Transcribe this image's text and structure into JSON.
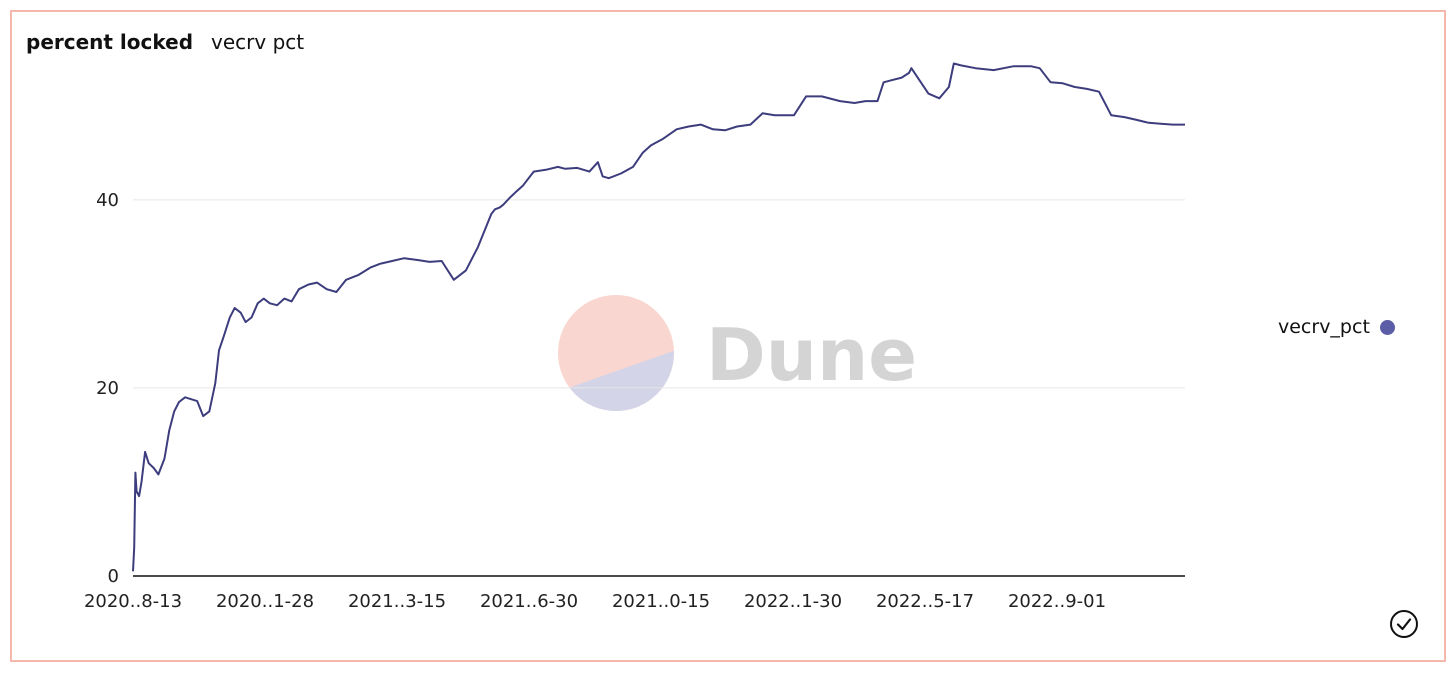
{
  "card": {
    "title": "percent locked",
    "subtitle": "vecrv pct"
  },
  "watermark": {
    "text": "Dune",
    "color_top": "#f9d6cf",
    "color_bottom": "#d4d4e8",
    "text_color": "#d4d4d4"
  },
  "legend": {
    "label": "vecrv_pct",
    "color": "#5b5ea6"
  },
  "icons": {
    "confirm": "check-circle-icon"
  },
  "colors": {
    "border": "#f4b8ac",
    "line": "#3d3d7e",
    "grid": "#e6e6e6"
  },
  "chart_data": {
    "type": "line",
    "title": "",
    "xlabel": "",
    "ylabel": "",
    "x_tick_labels": [
      "2020..8-13",
      "2020..1-28",
      "2021..3-15",
      "2021..6-30",
      "2021..0-15",
      "2022..1-30",
      "2022..5-17",
      "2022..9-01"
    ],
    "y_tick_labels": [
      "0",
      "20",
      "40"
    ],
    "y_ticks": [
      0,
      20,
      40
    ],
    "ylim": [
      0,
      57
    ],
    "xlim": [
      "2020-08-13",
      "2022-12-30"
    ],
    "grid": true,
    "legend_position": "right",
    "series": [
      {
        "name": "vecrv_pct",
        "x": [
          "2020-08-13",
          "2020-08-14",
          "2020-08-15",
          "2020-08-16",
          "2020-08-18",
          "2020-08-20",
          "2020-08-23",
          "2020-08-26",
          "2020-08-30",
          "2020-09-03",
          "2020-09-08",
          "2020-09-12",
          "2020-09-16",
          "2020-09-20",
          "2020-09-25",
          "2020-09-30",
          "2020-10-05",
          "2020-10-10",
          "2020-10-15",
          "2020-10-20",
          "2020-10-23",
          "2020-10-27",
          "2020-11-01",
          "2020-11-05",
          "2020-11-10",
          "2020-11-14",
          "2020-11-19",
          "2020-11-24",
          "2020-11-29",
          "2020-12-04",
          "2020-12-10",
          "2020-12-16",
          "2020-12-22",
          "2020-12-28",
          "2021-01-05",
          "2021-01-12",
          "2021-01-20",
          "2021-01-28",
          "2021-02-05",
          "2021-02-15",
          "2021-02-25",
          "2021-03-05",
          "2021-03-15",
          "2021-03-25",
          "2021-04-05",
          "2021-04-15",
          "2021-04-25",
          "2021-05-05",
          "2021-05-15",
          "2021-05-25",
          "2021-06-05",
          "2021-06-08",
          "2021-06-12",
          "2021-06-15",
          "2021-06-20",
          "2021-06-25",
          "2021-07-01",
          "2021-07-10",
          "2021-07-20",
          "2021-07-30",
          "2021-08-05",
          "2021-08-15",
          "2021-08-25",
          "2021-09-01",
          "2021-09-05",
          "2021-09-10",
          "2021-09-20",
          "2021-09-30",
          "2021-10-08",
          "2021-10-15",
          "2021-10-25",
          "2021-11-05",
          "2021-11-15",
          "2021-11-25",
          "2021-12-05",
          "2021-12-15",
          "2021-12-25",
          "2022-01-05",
          "2022-01-15",
          "2022-01-25",
          "2022-02-05",
          "2022-02-10",
          "2022-02-20",
          "2022-03-05",
          "2022-03-20",
          "2022-04-01",
          "2022-04-10",
          "2022-04-20",
          "2022-04-25",
          "2022-05-10",
          "2022-05-16",
          "2022-05-18",
          "2022-06-01",
          "2022-06-10",
          "2022-06-18",
          "2022-06-22",
          "2022-06-28",
          "2022-07-10",
          "2022-07-25",
          "2022-08-10",
          "2022-08-25",
          "2022-09-01",
          "2022-09-10",
          "2022-09-20",
          "2022-09-30",
          "2022-10-10",
          "2022-10-20",
          "2022-10-30",
          "2022-11-10",
          "2022-11-20",
          "2022-11-30",
          "2022-12-10",
          "2022-12-20",
          "2022-12-30"
        ],
        "values": [
          0.5,
          3.0,
          11.0,
          9.0,
          8.5,
          10.0,
          13.2,
          12.0,
          11.5,
          10.8,
          12.5,
          15.5,
          17.5,
          18.5,
          19.0,
          18.8,
          18.6,
          17.0,
          17.5,
          20.5,
          24.0,
          25.5,
          27.5,
          28.5,
          28.0,
          27.0,
          27.5,
          29.0,
          29.5,
          29.0,
          28.8,
          29.5,
          29.2,
          30.5,
          31.0,
          31.2,
          30.5,
          30.2,
          31.5,
          32.0,
          32.8,
          33.2,
          33.5,
          33.8,
          33.6,
          33.4,
          33.5,
          31.5,
          32.5,
          35.0,
          38.5,
          39.0,
          39.2,
          39.5,
          40.2,
          40.8,
          41.5,
          43.0,
          43.2,
          43.5,
          43.3,
          43.4,
          43.0,
          44.0,
          42.5,
          42.3,
          42.8,
          43.5,
          45.0,
          45.8,
          46.5,
          47.5,
          47.8,
          48.0,
          47.5,
          47.4,
          47.8,
          48.0,
          49.2,
          49.0,
          49.0,
          49.0,
          51.0,
          51.0,
          50.5,
          50.3,
          50.5,
          50.5,
          52.5,
          53.0,
          53.5,
          54.0,
          51.3,
          50.8,
          52.0,
          54.5,
          54.3,
          54.0,
          53.8,
          54.2,
          54.2,
          54.0,
          52.5,
          52.4,
          52.0,
          51.8,
          51.5,
          49.0,
          48.8,
          48.5,
          48.2,
          48.1,
          48.0,
          48.0
        ]
      }
    ]
  }
}
